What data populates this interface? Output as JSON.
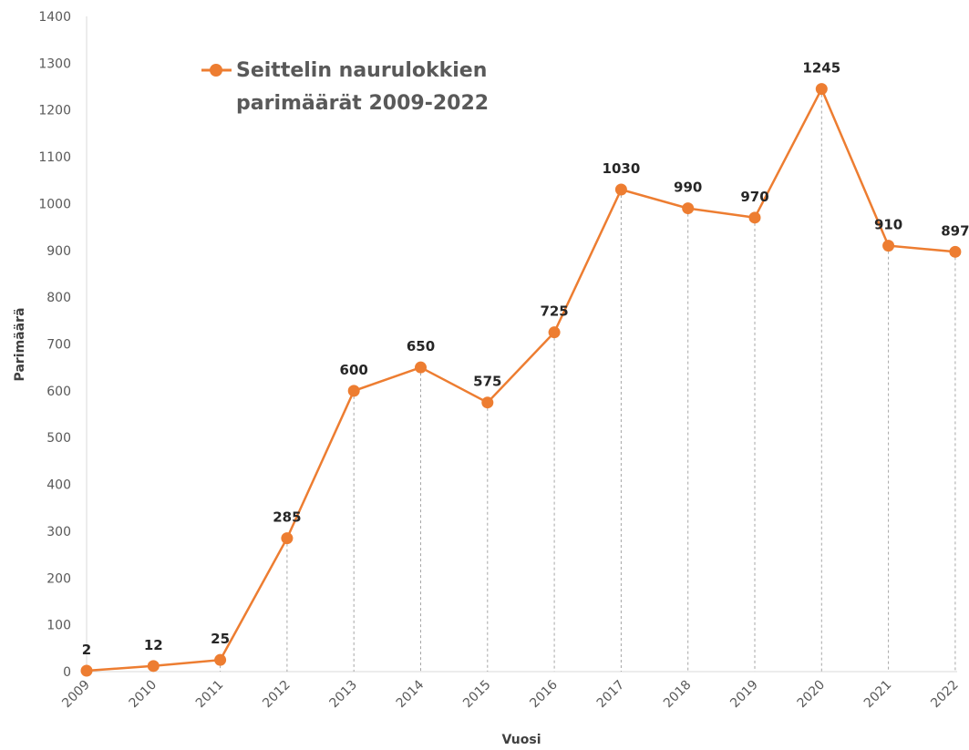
{
  "chart_data": {
    "type": "line",
    "x": [
      "2009",
      "2010",
      "2011",
      "2012",
      "2013",
      "2014",
      "2015",
      "2016",
      "2017",
      "2018",
      "2019",
      "2020",
      "2021",
      "2022"
    ],
    "series": [
      {
        "name": "Seittelin naurulokkien parimäärät 2009-2022",
        "name_lines": [
          "Seittelin naurulokkien",
          "parimäärät 2009-2022"
        ],
        "values": [
          2,
          12,
          25,
          285,
          600,
          650,
          575,
          725,
          1030,
          990,
          970,
          1245,
          910,
          897
        ],
        "color": "#ED7D31"
      }
    ],
    "xlabel": "Vuosi",
    "ylabel": "Parimäärä",
    "ylim": [
      0,
      1400
    ],
    "yticks": [
      "0",
      "100",
      "200",
      "300",
      "400",
      "500",
      "600",
      "700",
      "800",
      "900",
      "1000",
      "1100",
      "1200",
      "1300",
      "1400"
    ],
    "data_labels": [
      "2",
      "12",
      "25",
      "285",
      "600",
      "650",
      "575",
      "725",
      "1030",
      "990",
      "970",
      "1245",
      "910",
      "897"
    ],
    "drop_lines": true,
    "grid": false,
    "legend_position": "top-left"
  }
}
